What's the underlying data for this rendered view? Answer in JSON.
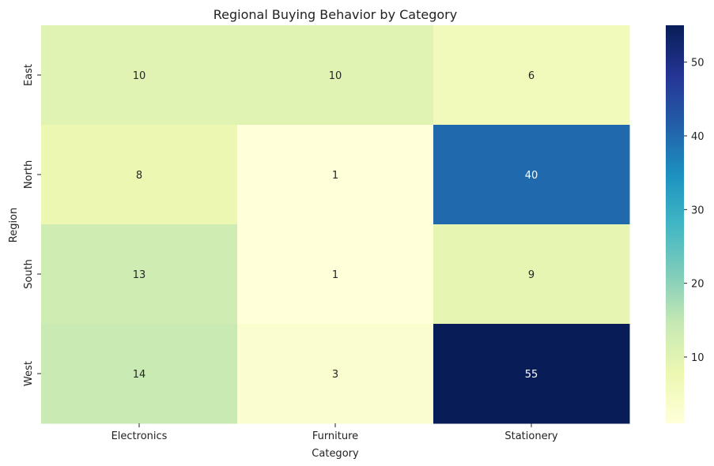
{
  "chart_data": {
    "type": "heatmap",
    "title": "Regional Buying Behavior by Category",
    "xlabel": "Category",
    "ylabel": "Region",
    "categories": [
      "Electronics",
      "Furniture",
      "Stationery"
    ],
    "rows": [
      "East",
      "North",
      "South",
      "West"
    ],
    "values": [
      [
        10,
        10,
        6
      ],
      [
        8,
        1,
        40
      ],
      [
        13,
        1,
        9
      ],
      [
        14,
        3,
        55
      ]
    ],
    "colormap": "YlGnBu",
    "vmin": 1,
    "vmax": 55,
    "colorbar_ticks": [
      10,
      20,
      30,
      40,
      50
    ],
    "annotations": true
  }
}
